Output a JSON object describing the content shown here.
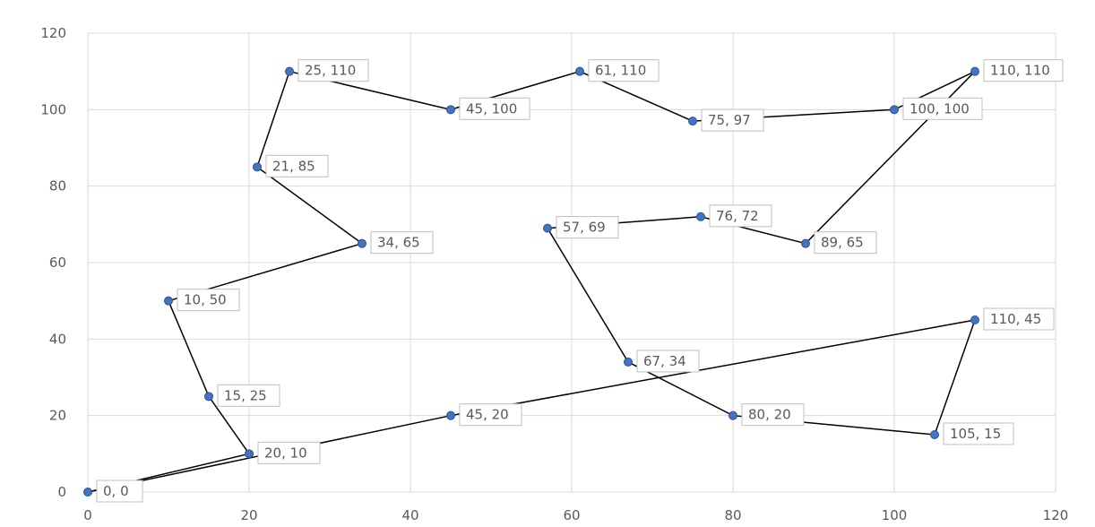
{
  "chart_data": {
    "type": "scatter",
    "title": "",
    "xlabel": "",
    "ylabel": "",
    "xlim": [
      0,
      120
    ],
    "ylim": [
      0,
      120
    ],
    "x_ticks": [
      0,
      20,
      40,
      60,
      80,
      100,
      120
    ],
    "y_ticks": [
      0,
      20,
      40,
      60,
      80,
      100,
      120
    ],
    "grid": true,
    "legend": "none",
    "line_color": "#000000",
    "marker_color": "#4472c4",
    "series": [
      {
        "points": [
          {
            "x": 0,
            "y": 0,
            "label": "0, 0"
          },
          {
            "x": 20,
            "y": 10,
            "label": "20, 10"
          },
          {
            "x": 15,
            "y": 25,
            "label": "15, 25"
          },
          {
            "x": 10,
            "y": 50,
            "label": "10, 50"
          },
          {
            "x": 34,
            "y": 65,
            "label": "34, 65"
          },
          {
            "x": 21,
            "y": 85,
            "label": "21, 85"
          },
          {
            "x": 25,
            "y": 110,
            "label": "25, 110"
          },
          {
            "x": 45,
            "y": 100,
            "label": "45, 100"
          },
          {
            "x": 61,
            "y": 110,
            "label": "61, 110"
          },
          {
            "x": 75,
            "y": 97,
            "label": "75, 97"
          },
          {
            "x": 100,
            "y": 100,
            "label": "100, 100"
          },
          {
            "x": 110,
            "y": 110,
            "label": "110, 110"
          },
          {
            "x": 89,
            "y": 65,
            "label": "89, 65"
          },
          {
            "x": 76,
            "y": 72,
            "label": "76, 72"
          },
          {
            "x": 57,
            "y": 69,
            "label": "57, 69"
          },
          {
            "x": 67,
            "y": 34,
            "label": "67, 34"
          },
          {
            "x": 80,
            "y": 20,
            "label": "80, 20"
          },
          {
            "x": 105,
            "y": 15,
            "label": "105, 15"
          },
          {
            "x": 110,
            "y": 45,
            "label": "110, 45"
          },
          {
            "x": 45,
            "y": 20,
            "label": "45, 20"
          },
          {
            "x": 0,
            "y": 0,
            "label": ""
          }
        ]
      }
    ]
  }
}
